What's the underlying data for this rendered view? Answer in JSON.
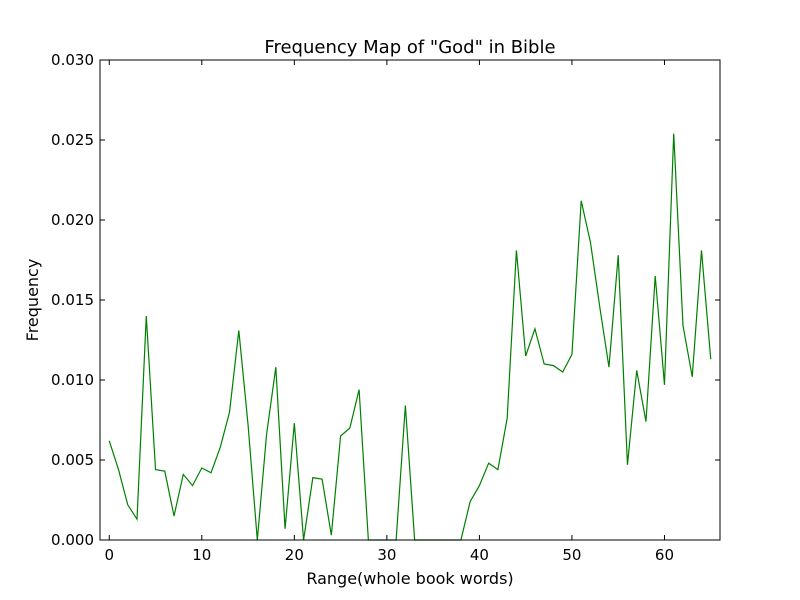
{
  "chart_data": {
    "type": "line",
    "title": "Frequency Map of \"God\" in Bible",
    "xlabel": "Range(whole book words)",
    "ylabel": "Frequency",
    "xlim": [
      -1,
      66
    ],
    "ylim": [
      0,
      0.03
    ],
    "xticks": [
      0,
      10,
      20,
      30,
      40,
      50,
      60
    ],
    "yticks": [
      0.0,
      0.005,
      0.01,
      0.015,
      0.02,
      0.025,
      0.03
    ],
    "ytick_labels": [
      "0.000",
      "0.005",
      "0.010",
      "0.015",
      "0.020",
      "0.025",
      "0.030"
    ],
    "grid": false,
    "line_color": "#008000",
    "series": [
      {
        "x": [
          0,
          1,
          2,
          3,
          4,
          5,
          6,
          7,
          8,
          9,
          10,
          11,
          12,
          13,
          14,
          15,
          16,
          17,
          18,
          19,
          20,
          21,
          22,
          23,
          24,
          25,
          26,
          27,
          28,
          29,
          30,
          31,
          32,
          33,
          34,
          35,
          36,
          37,
          38,
          39,
          40,
          41,
          42,
          43,
          44,
          45,
          46,
          47,
          48,
          49,
          50,
          51,
          52,
          53,
          54,
          55,
          56,
          57,
          58,
          59,
          60,
          61,
          62,
          63,
          64,
          65
        ],
        "values": [
          0.0062,
          0.0044,
          0.0022,
          0.0013,
          0.014,
          0.0044,
          0.0043,
          0.0015,
          0.0041,
          0.0034,
          0.0045,
          0.0042,
          0.0058,
          0.008,
          0.0131,
          0.0072,
          0.0,
          0.0066,
          0.0108,
          0.0007,
          0.0073,
          0.0,
          0.0039,
          0.0038,
          0.0003,
          0.0065,
          0.007,
          0.0094,
          0.0,
          0.0,
          0.0,
          0.0,
          0.0084,
          0.0,
          0.0,
          0.0,
          0.0,
          0.0,
          0.0,
          0.0024,
          0.0034,
          0.0048,
          0.0044,
          0.0076,
          0.0181,
          0.0115,
          0.0132,
          0.011,
          0.0109,
          0.0105,
          0.0116,
          0.0212,
          0.0186,
          0.0146,
          0.0108,
          0.0178,
          0.0047,
          0.0106,
          0.0074,
          0.0165,
          0.0097,
          0.0254,
          0.0134,
          0.0102,
          0.0181,
          0.0113
        ]
      }
    ]
  }
}
